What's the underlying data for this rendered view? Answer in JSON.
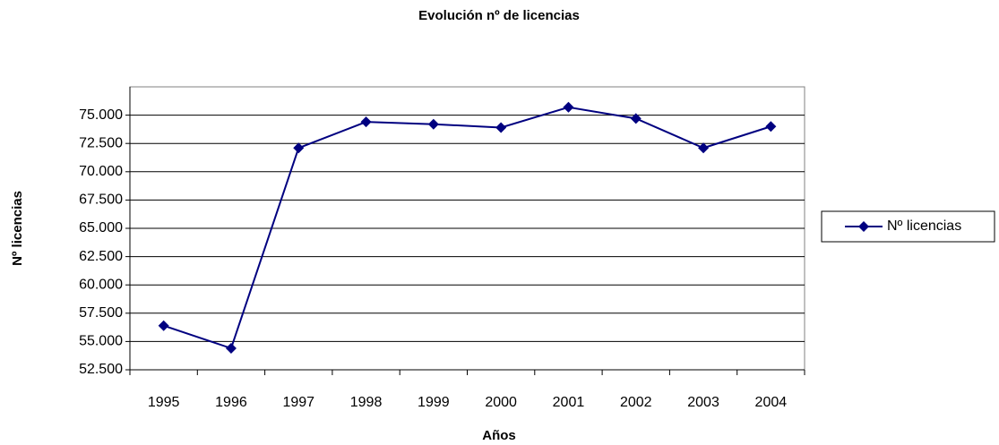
{
  "chart_data": {
    "type": "line",
    "title": "Evolución nº de licencias",
    "x_label": "Años",
    "y_label": "Nº licencias",
    "categories": [
      "1995",
      "1996",
      "1997",
      "1998",
      "1999",
      "2000",
      "2001",
      "2002",
      "2003",
      "2004"
    ],
    "series": [
      {
        "name": "Nº licencias",
        "color": "#000080",
        "values": [
          56400,
          54400,
          72100,
          74400,
          74200,
          73900,
          75700,
          74700,
          72100,
          74000
        ]
      }
    ],
    "ylim": [
      52500,
      77500
    ],
    "yticks": [
      {
        "value": 52500,
        "label": "52.500"
      },
      {
        "value": 55000,
        "label": "55.000"
      },
      {
        "value": 57500,
        "label": "57.500"
      },
      {
        "value": 60000,
        "label": "60.000"
      },
      {
        "value": 62500,
        "label": "62.500"
      },
      {
        "value": 65000,
        "label": "65.000"
      },
      {
        "value": 67500,
        "label": "67.500"
      },
      {
        "value": 70000,
        "label": "70.000"
      },
      {
        "value": 72500,
        "label": "72.500"
      },
      {
        "value": 75000,
        "label": "75.000"
      }
    ],
    "grid": true,
    "legend": "right"
  }
}
